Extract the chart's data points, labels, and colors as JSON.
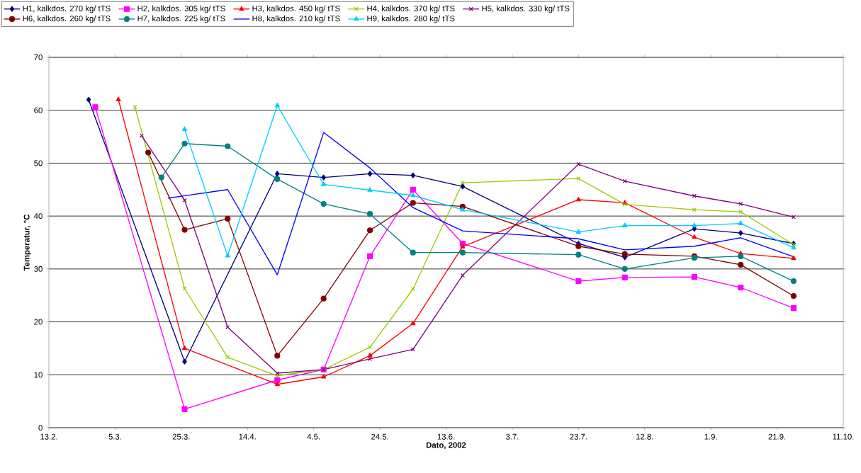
{
  "chart_data": {
    "type": "line",
    "xlabel": "Dato, 2002",
    "ylabel": "Temperatur, °C",
    "xlim": [
      "2002-02-13",
      "2002-10-11"
    ],
    "xticks": [
      {
        "value": "2002-02-13",
        "label": "13.2."
      },
      {
        "value": "2002-03-05",
        "label": "5.3."
      },
      {
        "value": "2002-03-25",
        "label": "25.3."
      },
      {
        "value": "2002-04-14",
        "label": "14.4."
      },
      {
        "value": "2002-05-04",
        "label": "4.5."
      },
      {
        "value": "2002-05-24",
        "label": "24.5."
      },
      {
        "value": "2002-06-13",
        "label": "13.6."
      },
      {
        "value": "2002-07-03",
        "label": "3.7."
      },
      {
        "value": "2002-07-23",
        "label": "23.7."
      },
      {
        "value": "2002-08-12",
        "label": "12.8."
      },
      {
        "value": "2002-09-01",
        "label": "1.9."
      },
      {
        "value": "2002-09-21",
        "label": "21.9."
      },
      {
        "value": "2002-10-11",
        "label": "11.10."
      }
    ],
    "ylim": [
      0,
      70
    ],
    "yticks": [
      0,
      10,
      20,
      30,
      40,
      50,
      60,
      70
    ],
    "grid": "y",
    "legend": "top",
    "line_style": "solid",
    "series": [
      {
        "name": "H1, kalkdos. 270 kg/ tTS",
        "color": "#000080",
        "marker": "diamond",
        "x": [
          "2002-02-25",
          "2002-03-26",
          "2002-04-23",
          "2002-05-07",
          "2002-05-21",
          "2002-06-03",
          "2002-06-18",
          "2002-07-23",
          "2002-08-06",
          "2002-08-27",
          "2002-09-10",
          "2002-09-26"
        ],
        "values": [
          62.0,
          12.5,
          48.0,
          47.3,
          48.0,
          47.7,
          45.6,
          34.8,
          32.2,
          37.6,
          36.8,
          34.8
        ]
      },
      {
        "name": "H2, kalkdos. 305 kg/ tTS",
        "color": "#ff00ff",
        "marker": "square",
        "x": [
          "2002-02-27",
          "2002-03-26",
          "2002-04-23",
          "2002-05-07",
          "2002-05-21",
          "2002-06-03",
          "2002-06-18",
          "2002-07-23",
          "2002-08-06",
          "2002-08-27",
          "2002-09-10",
          "2002-09-26"
        ],
        "values": [
          60.6,
          3.5,
          9.0,
          11.0,
          32.4,
          45.0,
          34.8,
          27.7,
          28.4,
          28.5,
          26.5,
          22.6
        ]
      },
      {
        "name": "H3, kalkdos. 450 kg/ tTS",
        "color": "#ff0000",
        "marker": "triangle",
        "x": [
          "2002-03-06",
          "2002-03-26",
          "2002-04-23",
          "2002-05-07",
          "2002-05-21",
          "2002-06-03",
          "2002-06-18",
          "2002-07-23",
          "2002-08-06",
          "2002-08-27",
          "2002-09-10",
          "2002-09-26"
        ],
        "values": [
          62.0,
          15.0,
          8.2,
          9.6,
          13.6,
          19.7,
          34.2,
          43.1,
          42.5,
          36.0,
          32.9,
          32.0
        ]
      },
      {
        "name": "H4, kalkdos. 370 kg/ tTS",
        "color": "#99cc00",
        "marker": "cross",
        "x": [
          "2002-03-11",
          "2002-03-26",
          "2002-04-08",
          "2002-04-23",
          "2002-05-07",
          "2002-05-21",
          "2002-06-03",
          "2002-06-18",
          "2002-07-23",
          "2002-08-06",
          "2002-08-27",
          "2002-09-10",
          "2002-09-26"
        ],
        "values": [
          60.6,
          26.3,
          13.3,
          9.8,
          11.0,
          15.2,
          26.2,
          46.3,
          47.1,
          42.2,
          41.2,
          40.8,
          34.6
        ]
      },
      {
        "name": "H5, kalkdos. 330 kg/ tTS",
        "color": "#800080",
        "marker": "cross",
        "x": [
          "2002-03-13",
          "2002-03-26",
          "2002-04-08",
          "2002-04-23",
          "2002-05-07",
          "2002-05-21",
          "2002-06-03",
          "2002-06-18",
          "2002-07-23",
          "2002-08-06",
          "2002-08-27",
          "2002-09-10",
          "2002-09-26"
        ],
        "values": [
          55.2,
          43.0,
          19.0,
          10.3,
          11.0,
          13.0,
          14.8,
          28.8,
          49.8,
          46.6,
          43.8,
          42.3,
          39.8
        ]
      },
      {
        "name": "H6, kalkdos. 260 kg/ tTS",
        "color": "#800000",
        "marker": "circle",
        "x": [
          "2002-03-15",
          "2002-03-26",
          "2002-04-08",
          "2002-04-23",
          "2002-05-07",
          "2002-05-21",
          "2002-06-03",
          "2002-06-18",
          "2002-07-23",
          "2002-08-06",
          "2002-08-27",
          "2002-09-10",
          "2002-09-26"
        ],
        "values": [
          52.0,
          37.4,
          39.5,
          13.6,
          24.4,
          37.3,
          42.5,
          41.8,
          34.3,
          32.8,
          32.4,
          30.8,
          24.9
        ]
      },
      {
        "name": "H7, kalkdos. 225 kg/ tTS",
        "color": "#008080",
        "marker": "circle",
        "x": [
          "2002-03-19",
          "2002-03-26",
          "2002-04-08",
          "2002-04-23",
          "2002-05-07",
          "2002-05-21",
          "2002-06-03",
          "2002-06-18",
          "2002-07-23",
          "2002-08-06",
          "2002-08-27",
          "2002-09-10",
          "2002-09-26"
        ],
        "values": [
          47.3,
          53.7,
          53.2,
          47.0,
          42.3,
          40.4,
          33.1,
          33.1,
          32.7,
          30.0,
          32.1,
          32.4,
          27.7
        ]
      },
      {
        "name": "H8, kalkdos. 210 kg/ tTS",
        "color": "#0000ff",
        "marker": "none",
        "x": [
          "2002-03-21",
          "2002-04-08",
          "2002-04-23",
          "2002-05-07",
          "2002-05-21",
          "2002-06-03",
          "2002-06-18",
          "2002-07-23",
          "2002-08-06",
          "2002-08-27",
          "2002-09-10",
          "2002-09-26"
        ],
        "values": [
          43.4,
          45.0,
          28.9,
          55.8,
          49.1,
          41.6,
          37.2,
          35.7,
          33.6,
          34.3,
          35.9,
          32.3
        ]
      },
      {
        "name": "H9, kalkdos. 280 kg/ tTS",
        "color": "#00ccff",
        "marker": "triangle",
        "x": [
          "2002-03-26",
          "2002-04-08",
          "2002-04-23",
          "2002-05-07",
          "2002-05-21",
          "2002-06-03",
          "2002-06-18",
          "2002-07-23",
          "2002-08-06",
          "2002-08-27",
          "2002-09-10",
          "2002-09-26"
        ],
        "values": [
          56.4,
          32.5,
          60.9,
          46.0,
          44.9,
          43.9,
          41.2,
          37.0,
          38.2,
          38.2,
          38.6,
          34.0
        ]
      }
    ]
  }
}
